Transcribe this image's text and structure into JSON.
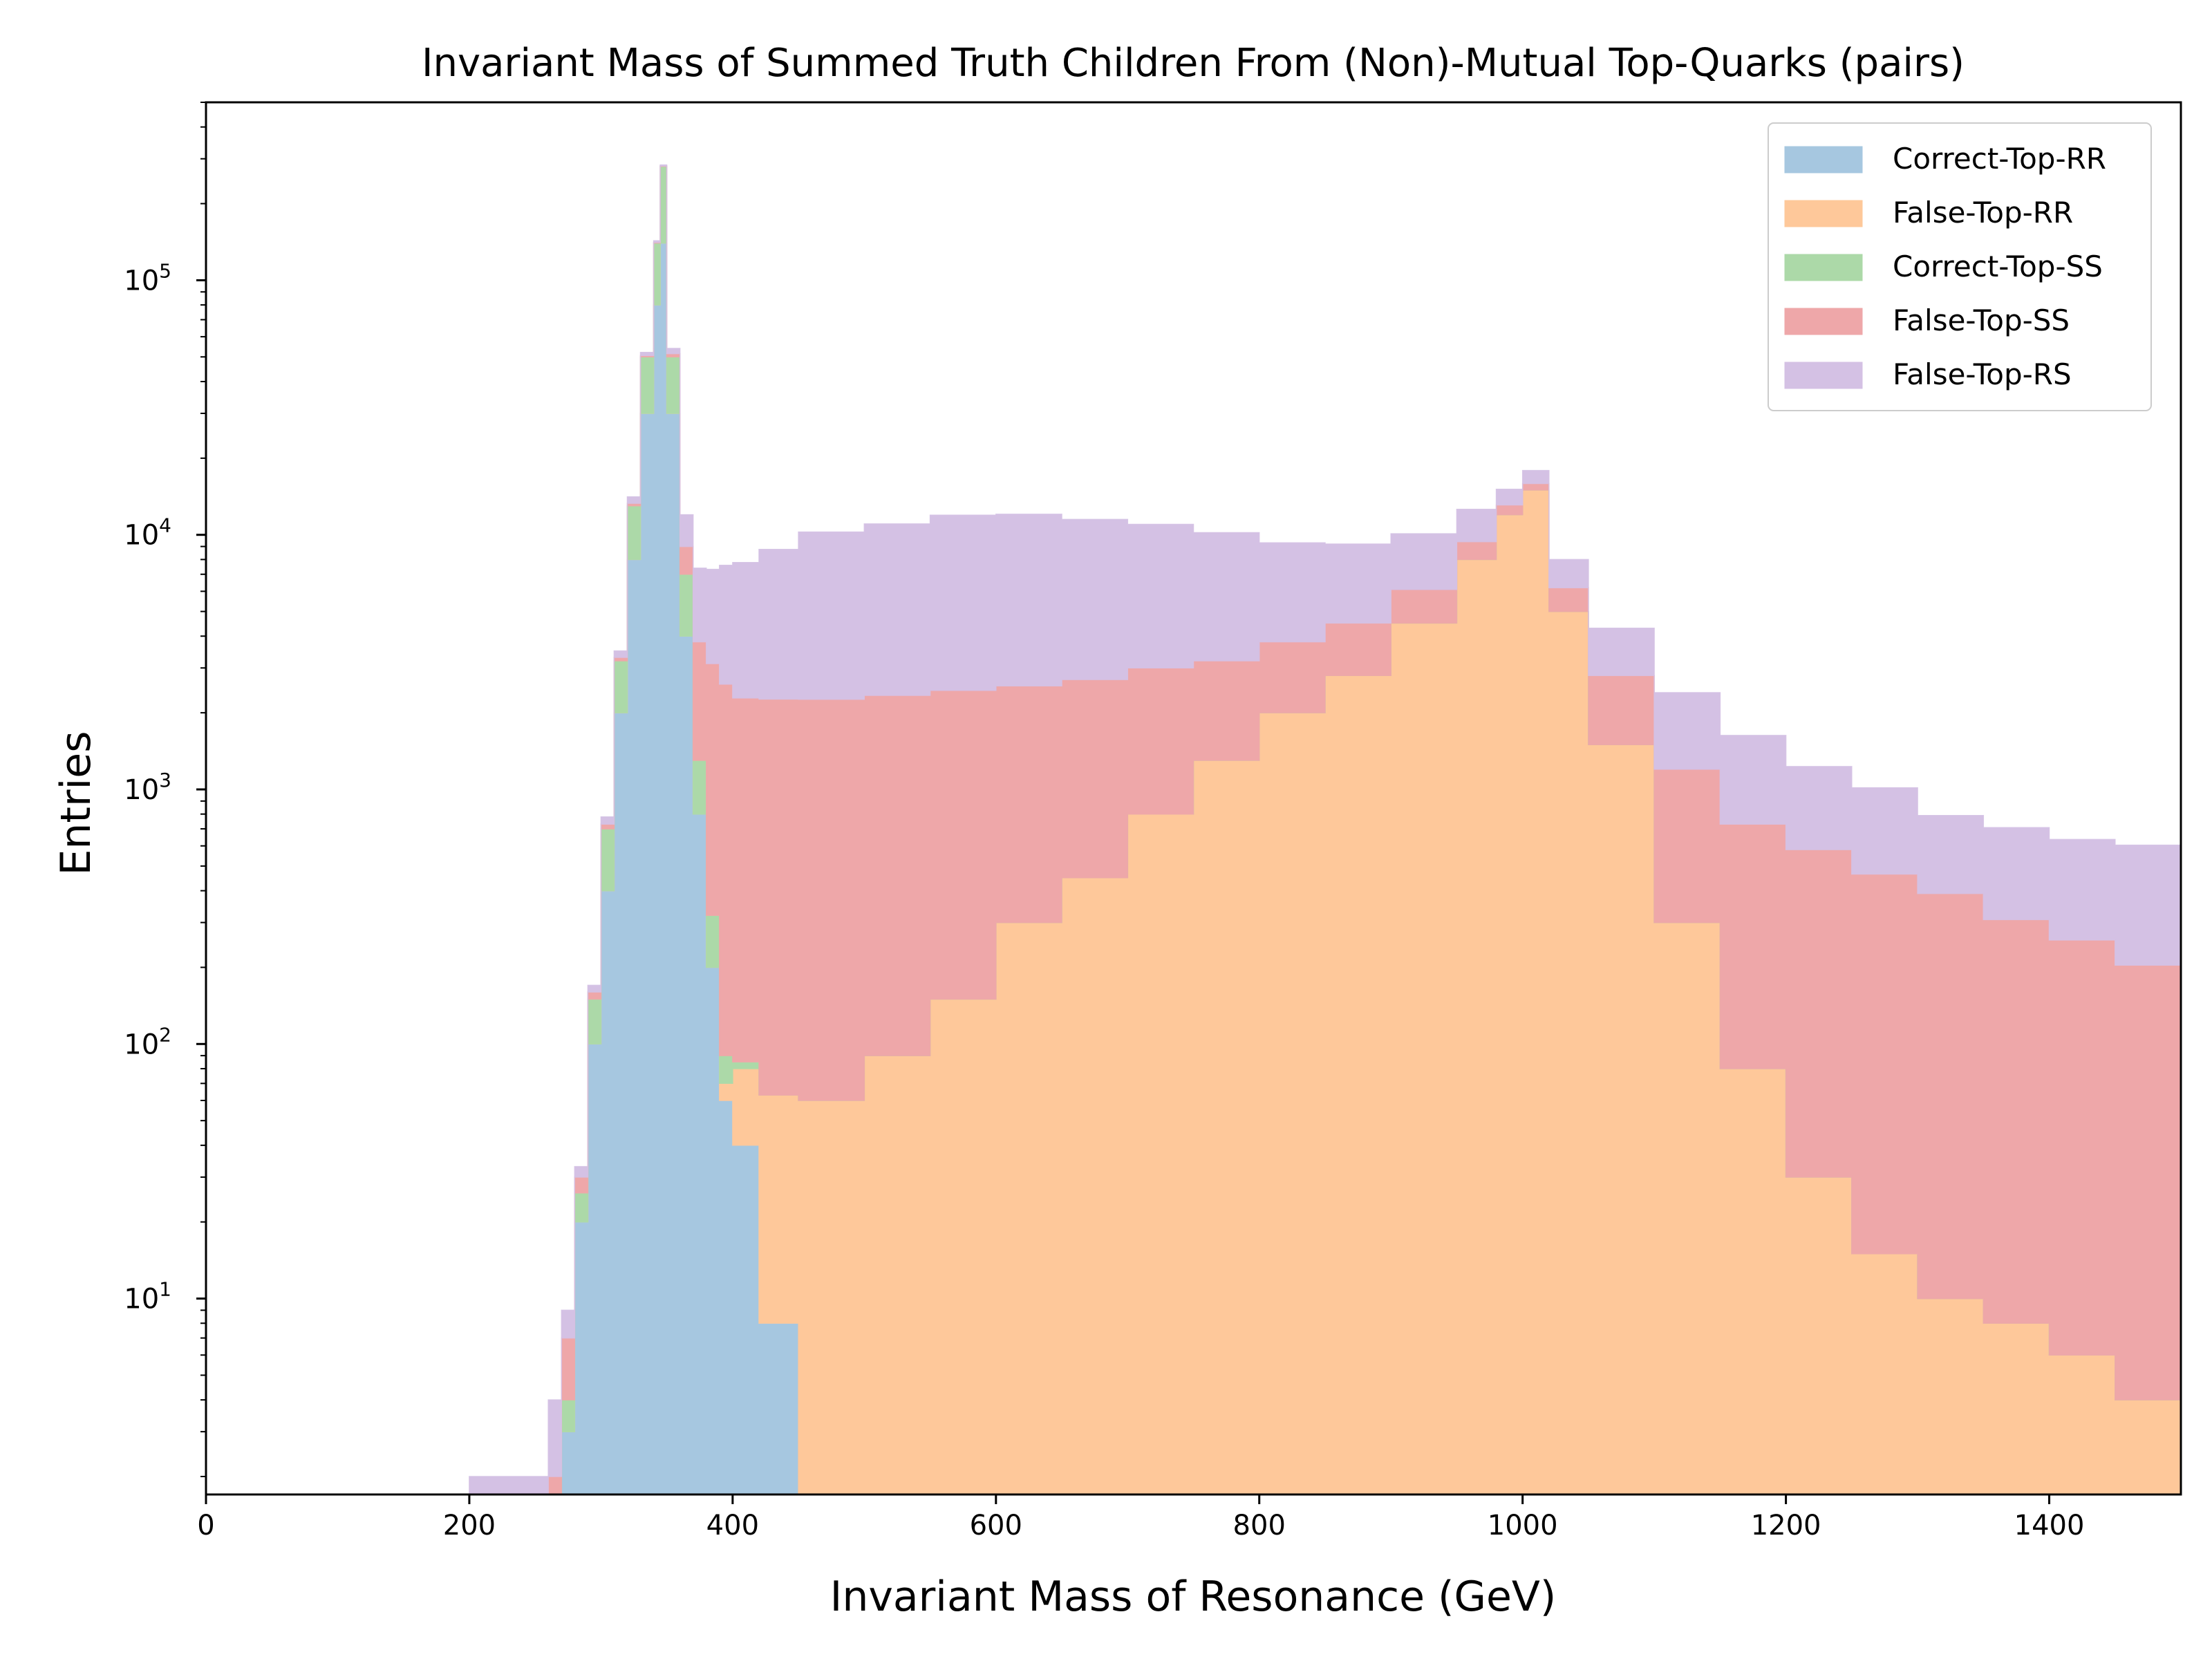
{
  "chart_data": {
    "type": "area",
    "title": "Invariant Mass of Summed Truth Children From (Non)-Mutual Top-Quarks (pairs)",
    "xlabel": "Invariant Mass of Resonance (GeV)",
    "ylabel": "Entries",
    "xlim": [
      0,
      1500
    ],
    "ylim": [
      1.7,
      500000
    ],
    "yscale": "log",
    "stacked": true,
    "x_ticks": [
      "0",
      "200",
      "400",
      "600",
      "800",
      "1000",
      "1200",
      "1400"
    ],
    "y_ticks": [
      {
        "base": "10",
        "exp": "1"
      },
      {
        "base": "10",
        "exp": "2"
      },
      {
        "base": "10",
        "exp": "3"
      },
      {
        "base": "10",
        "exp": "4"
      },
      {
        "base": "10",
        "exp": "5"
      }
    ],
    "legend_position": "top-right",
    "x": [
      200,
      260,
      270,
      280,
      290,
      300,
      310,
      320,
      330,
      340,
      345,
      350,
      360,
      370,
      380,
      390,
      400,
      420,
      450,
      500,
      550,
      600,
      650,
      700,
      750,
      800,
      850,
      900,
      950,
      980,
      1000,
      1020,
      1050,
      1100,
      1150,
      1200,
      1250,
      1300,
      1350,
      1400,
      1450,
      1500
    ],
    "series": [
      {
        "name": "Correct-Top-RR",
        "color": "#a6c7e0",
        "values": [
          0,
          0,
          3,
          20,
          100,
          400,
          2000,
          8000,
          30000,
          80000,
          140000,
          30000,
          4000,
          800,
          200,
          60,
          40,
          8,
          0,
          0,
          0,
          0,
          0,
          0,
          0,
          0,
          0,
          0,
          0,
          0,
          0,
          0,
          0,
          0,
          0,
          0,
          0,
          0,
          0,
          0,
          0,
          0
        ]
      },
      {
        "name": "False-Top-RR",
        "color": "#fec89a",
        "values": [
          0,
          0,
          0,
          0,
          0,
          0,
          0,
          0,
          0,
          0,
          0,
          0,
          0,
          0,
          0,
          10,
          40,
          55,
          60,
          90,
          150,
          300,
          450,
          800,
          1300,
          2000,
          2800,
          4500,
          8000,
          12000,
          15000,
          5000,
          1500,
          300,
          80,
          30,
          15,
          10,
          8,
          6,
          4,
          3
        ]
      },
      {
        "name": "Correct-Top-SS",
        "color": "#acd9a8",
        "values": [
          0,
          0,
          1,
          6,
          50,
          300,
          1200,
          5000,
          20000,
          60000,
          140000,
          20000,
          3000,
          500,
          120,
          20,
          5,
          0,
          0,
          0,
          0,
          0,
          0,
          0,
          0,
          0,
          0,
          0,
          0,
          0,
          0,
          0,
          0,
          0,
          0,
          0,
          0,
          0,
          0,
          0,
          0,
          0
        ]
      },
      {
        "name": "False-Top-SS",
        "color": "#eea7a9",
        "values": [
          0,
          2,
          3,
          4,
          10,
          30,
          100,
          300,
          600,
          900,
          1200,
          1500,
          2000,
          2500,
          2800,
          2500,
          2200,
          2200,
          2200,
          2250,
          2300,
          2250,
          2250,
          2200,
          1900,
          1800,
          1700,
          1600,
          1400,
          1100,
          900,
          1200,
          1300,
          900,
          650,
          550,
          450,
          380,
          300,
          250,
          200,
          180
        ]
      },
      {
        "name": "False-Top-RS",
        "color": "#d4c1e4",
        "values": [
          2,
          2,
          2,
          3,
          10,
          50,
          200,
          800,
          1500,
          2000,
          2500,
          2500,
          3000,
          3600,
          4200,
          5000,
          5500,
          6500,
          8000,
          8700,
          9500,
          9500,
          8800,
          8000,
          7000,
          5500,
          4700,
          4000,
          3200,
          2000,
          2000,
          1800,
          1500,
          1200,
          900,
          650,
          550,
          400,
          400,
          380,
          400,
          340
        ]
      }
    ]
  }
}
